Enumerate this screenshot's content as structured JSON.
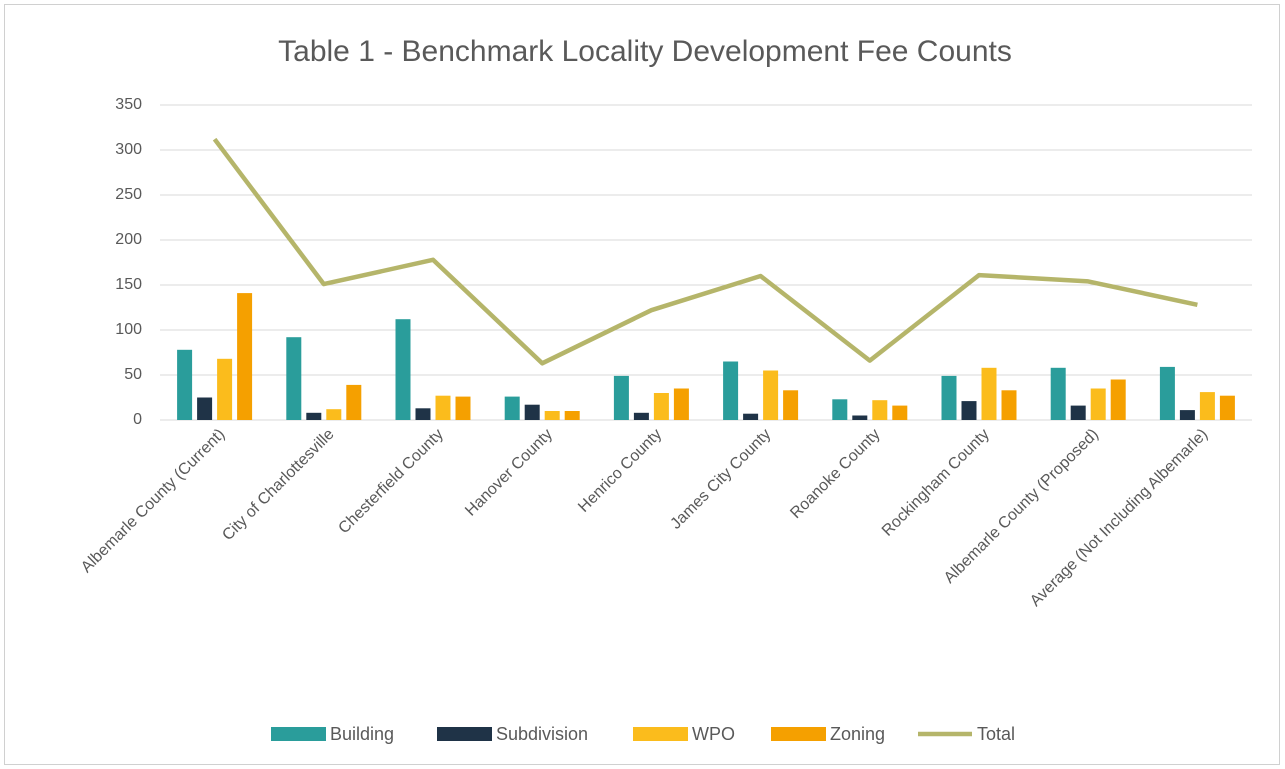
{
  "chart_data": {
    "type": "bar",
    "title": "Table 1 - Benchmark Locality Development Fee Counts",
    "categories": [
      "Albemarle County (Current)",
      "City of Charlottesville",
      "Chesterfield County",
      "Hanover County",
      "Henrico County",
      "James City County",
      "Roanoke County",
      "Rockingham County",
      "Albemarle County (Proposed)",
      "Average (Not Including Albemarle)"
    ],
    "series": [
      {
        "name": "Building",
        "color": "#2a9d9b",
        "values": [
          78,
          92,
          112,
          26,
          49,
          65,
          23,
          49,
          58,
          59
        ]
      },
      {
        "name": "Subdivision",
        "color": "#1f3347",
        "values": [
          25,
          8,
          13,
          17,
          8,
          7,
          5,
          21,
          16,
          11
        ]
      },
      {
        "name": "WPO",
        "color": "#fbbc1c",
        "values": [
          68,
          12,
          27,
          10,
          30,
          55,
          22,
          58,
          35,
          31
        ]
      },
      {
        "name": "Zoning",
        "color": "#f5a000",
        "values": [
          141,
          39,
          26,
          10,
          35,
          33,
          16,
          33,
          45,
          27
        ]
      },
      {
        "name": "Total",
        "type": "line",
        "color": "#b5b56a",
        "values": [
          312,
          151,
          178,
          63,
          122,
          160,
          66,
          161,
          154,
          128
        ]
      }
    ],
    "ylim": [
      0,
      350
    ],
    "yticks": [
      0,
      50,
      100,
      150,
      200,
      250,
      300,
      350
    ],
    "grid": true,
    "legend": "bottom"
  }
}
